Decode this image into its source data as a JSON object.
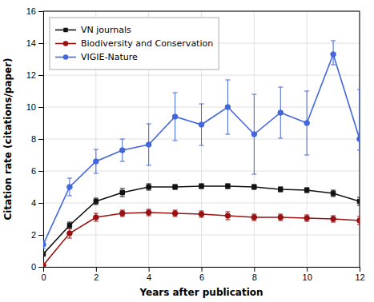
{
  "chart_data": {
    "type": "line",
    "xlabel": "Years after publication",
    "ylabel": "Citation rate (citations/paper)",
    "x": [
      0,
      1,
      2,
      3,
      4,
      5,
      6,
      7,
      8,
      9,
      10,
      11,
      12
    ],
    "xlim": [
      0,
      12
    ],
    "ylim": [
      0,
      16
    ],
    "xticks": [
      0,
      2,
      4,
      6,
      8,
      10,
      12
    ],
    "yticks": [
      0,
      2,
      4,
      6,
      8,
      10,
      12,
      14,
      16
    ],
    "grid": true,
    "legend": "upper left",
    "series": [
      {
        "name": "VN journals",
        "color": "#111111",
        "marker": "square",
        "values": [
          0.8,
          2.6,
          4.1,
          4.65,
          5.0,
          5.0,
          5.05,
          5.05,
          5.0,
          4.85,
          4.8,
          4.6,
          4.1
        ],
        "error_low": [
          0.1,
          0.2,
          0.2,
          0.25,
          0.2,
          0.15,
          0.15,
          0.15,
          0.15,
          0.15,
          0.15,
          0.2,
          0.25
        ],
        "error_high": [
          0.1,
          0.2,
          0.2,
          0.25,
          0.2,
          0.15,
          0.15,
          0.15,
          0.15,
          0.15,
          0.15,
          0.2,
          0.25
        ]
      },
      {
        "name": "Biodiversity and Conservation",
        "color": "#991111",
        "marker": "circle",
        "values": [
          0.1,
          2.1,
          3.1,
          3.35,
          3.4,
          3.35,
          3.3,
          3.2,
          3.1,
          3.1,
          3.05,
          3.0,
          2.9
        ],
        "error_low": [
          0.05,
          0.3,
          0.25,
          0.2,
          0.2,
          0.2,
          0.2,
          0.25,
          0.2,
          0.2,
          0.2,
          0.2,
          0.25
        ],
        "error_high": [
          0.05,
          0.3,
          0.25,
          0.2,
          0.2,
          0.2,
          0.2,
          0.25,
          0.2,
          0.2,
          0.2,
          0.2,
          0.25
        ]
      },
      {
        "name": "VIGIE-Nature",
        "color": "#4466dd",
        "marker": "circle",
        "values": [
          1.4,
          5.0,
          6.6,
          7.3,
          7.65,
          9.4,
          8.9,
          10.0,
          8.3,
          9.65,
          9.0,
          13.3,
          8.0
        ],
        "error_low": [
          0.25,
          0.55,
          0.75,
          0.7,
          1.3,
          1.5,
          1.3,
          1.7,
          2.5,
          1.6,
          2.0,
          0.65,
          0.7
        ],
        "error_high": [
          0.25,
          0.55,
          0.75,
          0.7,
          1.3,
          1.5,
          1.3,
          1.7,
          2.5,
          1.6,
          2.0,
          0.85,
          3.1
        ]
      }
    ]
  }
}
